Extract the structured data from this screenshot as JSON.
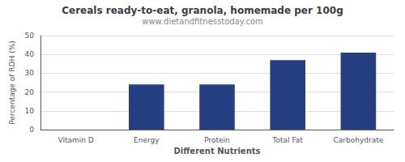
{
  "chart_data": {
    "type": "bar",
    "title": "Cereals ready-to-eat, granola, homemade per 100g",
    "subtitle": "www.dietandfitnesstoday.com",
    "xlabel": "Different Nutrients",
    "ylabel": "Percentage of RDH (%)",
    "categories": [
      "Vitamin D",
      "Energy",
      "Protein",
      "Total Fat",
      "Carbohydrate"
    ],
    "values": [
      0,
      24,
      24,
      37,
      41
    ],
    "color": "#253f82",
    "ylim": [
      0,
      50
    ],
    "yticks": [
      0,
      10,
      20,
      30,
      40,
      50
    ],
    "grid": true
  }
}
